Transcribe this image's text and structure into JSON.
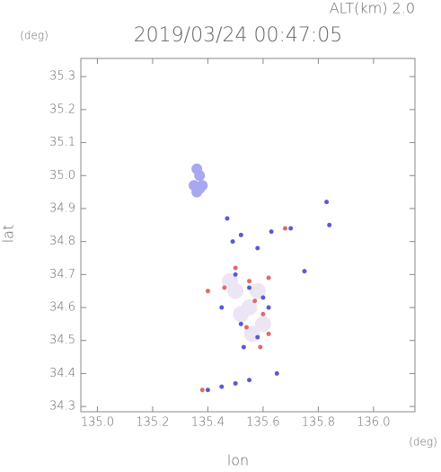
{
  "chart_data": {
    "type": "scatter",
    "title": "2019/03/24 00:47:05",
    "subtitle": "ALT(km) 2.0",
    "x_label": "lon",
    "y_label": "lat",
    "x_unit": "(deg)",
    "y_unit": "(deg)",
    "xlim": [
      134.94,
      136.15
    ],
    "ylim": [
      34.284,
      35.355
    ],
    "xticks": [
      {
        "value": 135,
        "label": "135.0"
      },
      135.2,
      135.4,
      135.6,
      135.8,
      {
        "value": 136,
        "label": "136.0"
      }
    ],
    "yticks": [
      34.3,
      34.4,
      34.5,
      34.6,
      34.7,
      34.8,
      34.9,
      {
        "value": 35,
        "label": "35.0"
      },
      35.1,
      35.2,
      35.3
    ],
    "grid": false,
    "series": [
      {
        "color": "#ece6f4",
        "x": [
          135.5,
          135.55,
          135.6,
          135.58,
          135.52,
          135.48,
          135.56
        ],
        "y": [
          34.65,
          34.6,
          34.55,
          34.65,
          34.58,
          34.68,
          34.52
        ]
      },
      {
        "color": "#a8a8f0",
        "x": [
          135.36,
          135.37,
          135.35,
          135.38,
          135.36,
          135.37
        ],
        "y": [
          35.02,
          35.0,
          34.97,
          34.97,
          34.95,
          34.96
        ]
      },
      {
        "color": "#5a5ad6",
        "x": [
          135.47,
          135.49,
          135.52,
          135.58,
          135.63,
          135.7,
          135.83,
          135.84,
          135.75,
          135.5,
          135.55,
          135.6,
          135.45,
          135.52,
          135.53,
          135.58,
          135.62,
          135.4,
          135.45,
          135.5,
          135.55,
          135.65
        ],
        "y": [
          34.87,
          34.8,
          34.82,
          34.78,
          34.83,
          34.84,
          34.92,
          34.85,
          34.71,
          34.7,
          34.66,
          34.63,
          34.6,
          34.55,
          34.48,
          34.51,
          34.6,
          34.35,
          34.36,
          34.37,
          34.38,
          34.4
        ]
      },
      {
        "color": "#e06a6a",
        "x": [
          135.4,
          135.46,
          135.5,
          135.55,
          135.57,
          135.6,
          135.54,
          135.59,
          135.62,
          135.68,
          135.62,
          135.38
        ],
        "y": [
          34.65,
          34.66,
          34.72,
          34.68,
          34.62,
          34.58,
          34.54,
          34.48,
          34.52,
          34.84,
          34.69,
          34.35
        ]
      }
    ]
  }
}
